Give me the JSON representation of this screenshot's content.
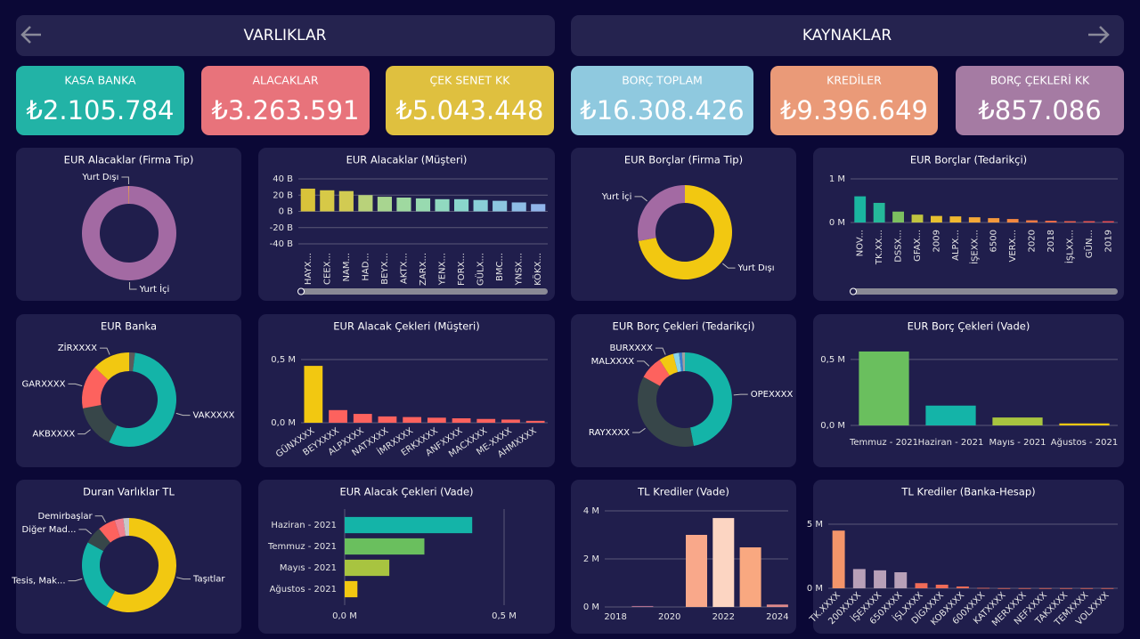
{
  "header": {
    "left": "VARLIKLAR",
    "right": "KAYNAKLAR"
  },
  "kpis": [
    {
      "label": "KASA BANKA",
      "value": "₺2.105.784",
      "color": "#22b3a6"
    },
    {
      "label": "ALACAKLAR",
      "value": "₺3.263.591",
      "color": "#e8737b"
    },
    {
      "label": "ÇEK SENET KK",
      "value": "₺5.043.448",
      "color": "#dfc03f"
    },
    {
      "label": "BORÇ TOPLAM",
      "value": "₺16.308.426",
      "color": "#8fc9df"
    },
    {
      "label": "KREDİLER",
      "value": "₺9.396.649",
      "color": "#ea9a78"
    },
    {
      "label": "BORÇ ÇEKLERİ KK",
      "value": "₺857.086",
      "color": "#a57ba3"
    }
  ],
  "chart_data": [
    {
      "type": "donut",
      "title": "EUR Alacaklar (Firma Tip)",
      "categories": [
        "Yurt İçi",
        "Yurt Dışı"
      ],
      "values": [
        99.7,
        0.3
      ],
      "colors": [
        "#a36aa3",
        "#e8a060"
      ]
    },
    {
      "type": "bar",
      "title": "EUR Alacaklar (Müşteri)",
      "categories": [
        "HAYX...",
        "CEEX...",
        "NAM...",
        "HAD...",
        "BEYX...",
        "AKTX...",
        "ZARX...",
        "YENX...",
        "FORX...",
        "GÜLX...",
        "BMC...",
        "YNSX...",
        "KÖKX..."
      ],
      "values": [
        28,
        26,
        25,
        20,
        18,
        17,
        16,
        15,
        15,
        14,
        13,
        11,
        9
      ],
      "colors": [
        "#d9c33a",
        "#d7c947",
        "#d2cb52",
        "#b9d27a",
        "#a8d590",
        "#9fd9a0",
        "#98dab0",
        "#91d9c0",
        "#8ad6cc",
        "#8ad0d8",
        "#8cc6e0",
        "#8ebde6",
        "#90b4ea"
      ],
      "ylim": [
        -40,
        40
      ],
      "yticks": [
        {
          "value": 40,
          "label": "40 B"
        },
        {
          "value": 20,
          "label": "20 B"
        },
        {
          "value": 0,
          "label": "0 B"
        },
        {
          "value": -20,
          "label": "-20 B"
        },
        {
          "value": -40,
          "label": "-40 B"
        }
      ],
      "grid": true
    },
    {
      "type": "donut",
      "title": "EUR Borçlar (Firma Tip)",
      "categories": [
        "Yurt Dışı",
        "Yurt İçi"
      ],
      "values": [
        72,
        28
      ],
      "colors": [
        "#f2c811",
        "#a36aa3"
      ]
    },
    {
      "type": "bar",
      "title": "EUR Borçlar (Tedarikçi)",
      "categories": [
        "NOV...",
        "TK.XX...",
        "DSSX...",
        "GFAX...",
        "2009",
        "ALPX...",
        "İŞEXX...",
        "6500",
        "VERX...",
        "2020",
        "2018",
        "İŞLXX...",
        "GÜN...",
        "2019"
      ],
      "values": [
        0.6,
        0.45,
        0.25,
        0.18,
        0.15,
        0.14,
        0.12,
        0.1,
        0.08,
        0.05,
        0.04,
        0.03,
        0.03,
        0.03
      ],
      "colors": [
        "#1ab5a0",
        "#25b89a",
        "#7cc060",
        "#c0c440",
        "#e6c030",
        "#f0b830",
        "#f4a838",
        "#f4983c",
        "#f48840",
        "#f37a44",
        "#f06c48",
        "#ee604c",
        "#ec5650",
        "#ea4e52"
      ],
      "ylim": [
        0,
        1
      ],
      "yticks": [
        {
          "value": 1,
          "label": "1 M"
        },
        {
          "value": 0,
          "label": "0 M"
        }
      ],
      "grid": true
    },
    {
      "type": "donut",
      "title": "EUR Banka",
      "categories": [
        null,
        "VAKXXXX",
        "AKBXXXX",
        "GARXXXX",
        "ZİRXXXX"
      ],
      "values": [
        2,
        55,
        15,
        15,
        13
      ],
      "colors": [
        "#5b5b5b",
        "#14b4a8",
        "#374649",
        "#fd625e",
        "#f2c811"
      ]
    },
    {
      "type": "bar",
      "title": "EUR Alacak Çekleri (Müşteri)",
      "categories": [
        "GÜNXXXX",
        "BEYXXXX",
        "ALPXXXX",
        "NATXXXX",
        "İMRXXXX",
        "ERKXXXX",
        "ANFXXXX",
        "MACXXXX",
        "ME-XXXX",
        "AHMXXXX"
      ],
      "values": [
        0.45,
        0.1,
        0.07,
        0.05,
        0.045,
        0.04,
        0.035,
        0.03,
        0.025,
        0.015
      ],
      "colors": [
        "#f2c811",
        "#fd625e",
        "#fd625e",
        "#fd625e",
        "#fd625e",
        "#fd625e",
        "#fd625e",
        "#fd625e",
        "#fd625e",
        "#fd625e"
      ],
      "ylim": [
        0,
        0.5
      ],
      "yticks": [
        {
          "value": 0.5,
          "label": "0,5 M"
        },
        {
          "value": 0,
          "label": "0,0 M"
        }
      ],
      "grid": true
    },
    {
      "type": "donut",
      "title": "EUR Borç Çekleri (Tedarikçi)",
      "categories": [
        "OPEXXXX",
        "RAYXXXX",
        "MALXXXX",
        "BURXXXX",
        null,
        null,
        null
      ],
      "values": [
        47,
        36,
        8,
        5,
        2,
        1,
        1
      ],
      "colors": [
        "#14b4a8",
        "#374649",
        "#fd625e",
        "#f2c811",
        "#8ad4eb",
        "#3a7fd0",
        "#a0a0a0"
      ]
    },
    {
      "type": "bar",
      "title": "EUR Borç Çekleri (Vade)",
      "categories": [
        "Temmuz - 2021",
        "Haziran - 2021",
        "Mayıs - 2021",
        "Ağustos - 2021"
      ],
      "values": [
        0.56,
        0.15,
        0.06,
        0.015
      ],
      "colors": [
        "#6abf5e",
        "#14b4a8",
        "#a8c440",
        "#f2c811"
      ],
      "ylim": [
        0,
        0.6
      ],
      "yticks": [
        {
          "value": 0.5,
          "label": "0,5 M"
        },
        {
          "value": 0,
          "label": "0,0 M"
        }
      ],
      "grid": true
    },
    {
      "type": "donut",
      "title": "Duran Varlıklar TL",
      "categories": [
        "Taşıtlar",
        "Tesis, Mak...",
        "Diğer Mad...",
        "Demirbaşlar",
        null,
        null
      ],
      "values": [
        58,
        25,
        6,
        6,
        3,
        2
      ],
      "colors": [
        "#f2c811",
        "#14b4a8",
        "#374649",
        "#fd625e",
        "#f08090",
        "#c8c8c8"
      ]
    },
    {
      "type": "hbar",
      "title": "EUR Alacak Çekleri (Vade)",
      "categories": [
        "Haziran - 2021",
        "Temmuz - 2021",
        "Mayıs - 2021",
        "Ağustos - 2021"
      ],
      "values": [
        0.4,
        0.25,
        0.14,
        0.04
      ],
      "colors": [
        "#14b4a8",
        "#6abf5e",
        "#a8c440",
        "#f2c811"
      ],
      "xlim": [
        0,
        0.5
      ],
      "xticks": [
        {
          "value": 0,
          "label": "0,0 M"
        },
        {
          "value": 0.5,
          "label": "0,5 M"
        }
      ],
      "grid": true
    },
    {
      "type": "bar",
      "title": "TL Krediler (Vade)",
      "x": [
        2019,
        2021,
        2022,
        2023,
        2024
      ],
      "values": [
        0.04,
        3.0,
        3.7,
        2.48,
        0.1
      ],
      "colors": [
        "#b07090",
        "#f9a88a",
        "#fcd5c2",
        "#f9a880",
        "#e08a8a"
      ],
      "xlim": [
        2017.6,
        2024.4
      ],
      "xticks": [
        2018,
        2020,
        2022,
        2024
      ],
      "ylim": [
        0,
        4
      ],
      "yticks": [
        {
          "value": 4,
          "label": "4 M"
        },
        {
          "value": 2,
          "label": "2 M"
        },
        {
          "value": 0,
          "label": "0 M"
        }
      ],
      "grid": true
    },
    {
      "type": "bar",
      "title": "TL Krediler (Banka-Hesap)",
      "categories": [
        "TK.XXXX",
        "200XXXX",
        "İŞEXXXX",
        "650XXXX",
        "İŞLXXXX",
        "DİGXXXX",
        "KOBXXXX",
        "600XXXX",
        "KATXXXX",
        "MERXXXX",
        "NEFXXXX",
        "TAKXXXX",
        "TEMXXXX",
        "VOLXXXX"
      ],
      "values": [
        4.5,
        1.5,
        1.4,
        1.25,
        0.4,
        0.28,
        0.14,
        0.03,
        0.01,
        0.01,
        0.01,
        0.01,
        0.01,
        0.01
      ],
      "colors": [
        "#f4956a",
        "#b8a0b8",
        "#b8a0b8",
        "#b8a0b8",
        "#f06c58",
        "#f06c58",
        "#f06c58",
        "#f06c58",
        "#f06c58",
        "#f06c58",
        "#f06c58",
        "#f06c58",
        "#f06c58",
        "#f06c58"
      ],
      "ylim": [
        0,
        5
      ],
      "yticks": [
        {
          "value": 5,
          "label": "5 M"
        },
        {
          "value": 0,
          "label": "0 M"
        }
      ],
      "grid": true
    }
  ]
}
